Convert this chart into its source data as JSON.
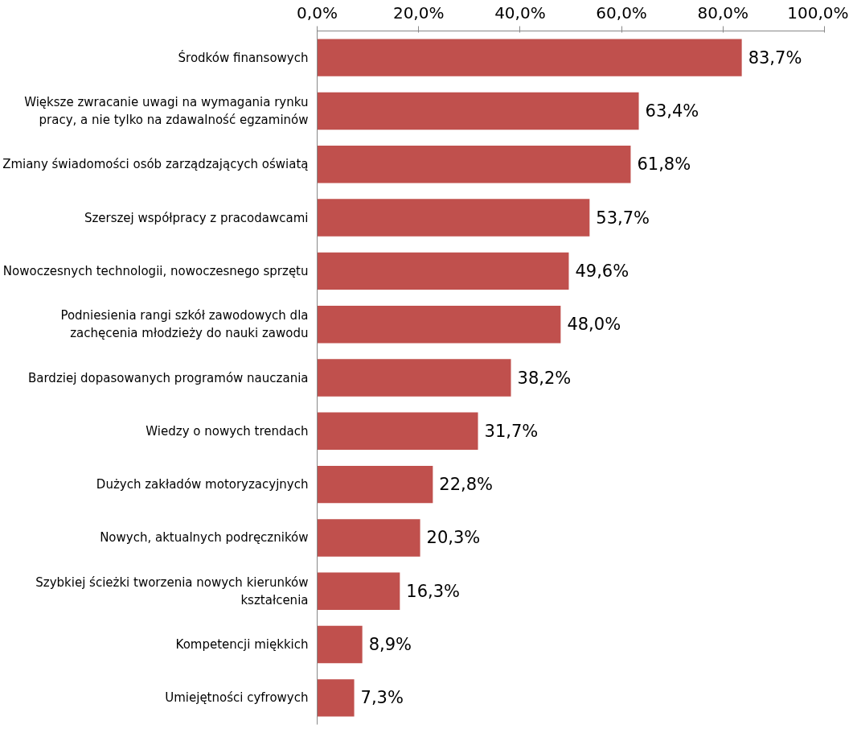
{
  "chart_data": {
    "type": "bar",
    "orientation": "horizontal",
    "categories": [
      "Środków finansowych",
      "Większe zwracanie uwagi na wymagania rynku\npracy, a nie tylko na zdawalność egzaminów",
      "Zmiany świadomości osób zarządzających oświatą",
      "Szerszej współpracy z pracodawcami",
      "Nowoczesnych technologii, nowoczesnego sprzętu",
      "Podniesienia rangi szkół zawodowych dla\nzachęcenia młodzieży do nauki zawodu",
      "Bardziej dopasowanych programów nauczania",
      "Wiedzy o nowych trendach",
      "Dużych zakładów motoryzacyjnych",
      "Nowych, aktualnych podręczników",
      "Szybkiej ścieżki tworzenia nowych kierunków\nkształcenia",
      "Kompetencji miękkich",
      "Umiejętności cyfrowych"
    ],
    "values": [
      83.7,
      63.4,
      61.8,
      53.7,
      49.6,
      48.0,
      38.2,
      31.7,
      22.8,
      20.3,
      16.3,
      8.9,
      7.3
    ],
    "value_labels": [
      "83,7%",
      "63,4%",
      "61,8%",
      "53,7%",
      "49,6%",
      "48,0%",
      "38,2%",
      "31,7%",
      "22,8%",
      "20,3%",
      "16,3%",
      "8,9%",
      "7,3%"
    ],
    "color": "#c0504d",
    "xlim": [
      0,
      100
    ],
    "xticks": [
      {
        "value": 0,
        "label": "0,0%"
      },
      {
        "value": 20,
        "label": "20,0%"
      },
      {
        "value": 40,
        "label": "40,0%"
      },
      {
        "value": 60,
        "label": "60,0%"
      },
      {
        "value": 80,
        "label": "80,0%"
      },
      {
        "value": 100,
        "label": "100,0%"
      }
    ],
    "grid": false
  }
}
